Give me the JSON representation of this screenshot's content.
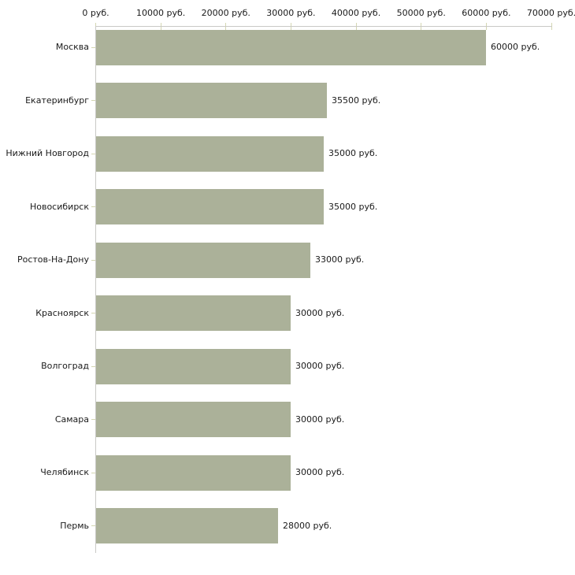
{
  "chart_data": {
    "type": "bar",
    "orientation": "horizontal",
    "title": "",
    "unit": "руб.",
    "categories": [
      "Москва",
      "Екатеринбург",
      "Нижний Новгород",
      "Новосибирск",
      "Ростов-На-Дону",
      "Красноярск",
      "Волгоград",
      "Самара",
      "Челябинск",
      "Пермь"
    ],
    "values": [
      60000,
      35500,
      35000,
      35000,
      33000,
      30000,
      30000,
      30000,
      30000,
      28000
    ],
    "value_labels": [
      "60000 руб.",
      "35500 руб.",
      "35000 руб.",
      "35000 руб.",
      "33000 руб.",
      "30000 руб.",
      "30000 руб.",
      "30000 руб.",
      "30000 руб.",
      "28000 руб."
    ],
    "x_axis": {
      "position": "top",
      "xlim": [
        0,
        70000
      ],
      "tick_values": [
        0,
        10000,
        20000,
        30000,
        40000,
        50000,
        60000,
        70000
      ],
      "tick_labels": [
        "0 руб.",
        "10000 руб.",
        "20000 руб.",
        "30000 руб.",
        "40000 руб.",
        "50000 руб.",
        "60000 руб.",
        "70000 руб."
      ]
    },
    "grid": false,
    "legend": false,
    "colors": {
      "bar": "#abb199",
      "axis_line": "#c9c9c6",
      "tick_mark": "#d4d6b2",
      "text": "#1a1a1a",
      "background": "#ffffff"
    }
  }
}
